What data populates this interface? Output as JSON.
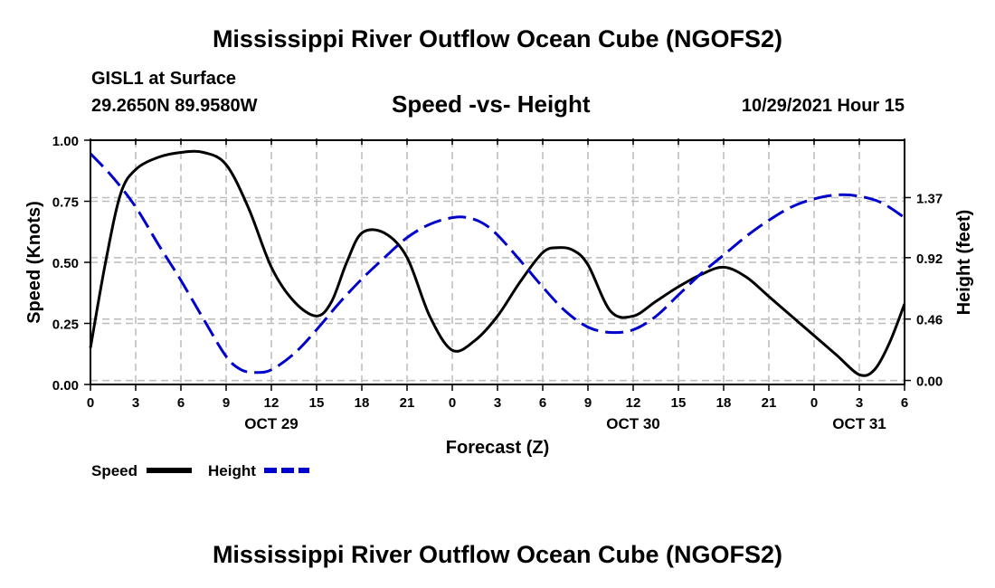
{
  "header": {
    "title": "Mississippi River Outflow Ocean Cube (NGOFS2)",
    "station": "GISL1 at Surface",
    "coordinates": "29.2650N  89.9580W",
    "subtitle": "Speed -vs- Height",
    "datetime": "10/29/2021 Hour 15"
  },
  "footer": {
    "title": "Mississippi River Outflow Ocean Cube (NGOFS2)"
  },
  "colors": {
    "speed": "#000000",
    "height": "#0000cc",
    "grid": "#bbbbbb"
  },
  "chart_data": {
    "type": "line",
    "title": "Speed -vs- Height",
    "xlabel": "Forecast (Z)",
    "ylabel": "Speed (Knots)",
    "y2label": "Height (feet)",
    "xlim": [
      0,
      54
    ],
    "ylim": [
      0,
      1
    ],
    "y2lim": [
      -0.03,
      1.8
    ],
    "x_ticks": [
      0,
      3,
      6,
      9,
      12,
      15,
      18,
      21,
      24,
      27,
      30,
      33,
      36,
      39,
      42,
      45,
      48,
      51,
      54
    ],
    "x_tick_labels": [
      "0",
      "3",
      "6",
      "9",
      "12",
      "15",
      "18",
      "21",
      "0",
      "3",
      "6",
      "9",
      "12",
      "15",
      "18",
      "21",
      "0",
      "3",
      "6"
    ],
    "date_labels": [
      {
        "x": 12,
        "label": "OCT 29"
      },
      {
        "x": 36,
        "label": "OCT 30"
      },
      {
        "x": 51,
        "label": "OCT 31"
      }
    ],
    "y_ticks": [
      0,
      0.25,
      0.5,
      0.75,
      1
    ],
    "y_tick_labels": [
      "0.00",
      "0.25",
      "0.50",
      "0.75",
      "1.00"
    ],
    "y2_ticks": [
      0,
      0.46,
      0.92,
      1.37
    ],
    "y2_tick_labels": [
      "0.00",
      "0.46",
      "0.92",
      "1.37"
    ],
    "grid": true,
    "legend_position": "bottom-left",
    "series": [
      {
        "name": "Speed",
        "axis": "left",
        "style": "solid",
        "x": [
          0,
          1,
          2,
          3,
          4.5,
          6,
          7.5,
          9,
          10.5,
          12,
          13.5,
          15,
          16,
          17,
          18,
          19.5,
          21,
          22.5,
          24,
          25.5,
          27,
          28.5,
          30,
          31,
          32,
          33,
          34.5,
          36,
          37.5,
          39,
          40.5,
          42,
          43.5,
          45,
          46.5,
          48,
          49.5,
          51,
          52,
          53,
          54
        ],
        "values": [
          0.15,
          0.5,
          0.78,
          0.88,
          0.93,
          0.95,
          0.95,
          0.9,
          0.72,
          0.48,
          0.34,
          0.28,
          0.34,
          0.5,
          0.62,
          0.62,
          0.52,
          0.28,
          0.14,
          0.18,
          0.28,
          0.42,
          0.54,
          0.56,
          0.55,
          0.49,
          0.3,
          0.28,
          0.34,
          0.4,
          0.45,
          0.48,
          0.44,
          0.36,
          0.28,
          0.2,
          0.12,
          0.04,
          0.06,
          0.17,
          0.33
        ]
      },
      {
        "name": "Height",
        "axis": "right",
        "style": "dashed",
        "x": [
          0,
          1.5,
          3,
          4.5,
          6,
          7.5,
          9,
          10,
          11,
          12,
          13.5,
          15,
          16.5,
          18,
          19.5,
          21,
          22.5,
          24,
          25,
          26,
          27,
          28.5,
          30,
          31.5,
          33,
          34.5,
          36,
          37.5,
          39,
          40.5,
          42,
          43.5,
          45,
          46.5,
          48,
          49.5,
          51,
          52.5,
          54
        ],
        "values": [
          1.7,
          1.52,
          1.3,
          1.02,
          0.75,
          0.46,
          0.18,
          0.08,
          0.06,
          0.08,
          0.2,
          0.38,
          0.58,
          0.76,
          0.92,
          1.07,
          1.17,
          1.22,
          1.22,
          1.18,
          1.09,
          0.9,
          0.7,
          0.52,
          0.4,
          0.36,
          0.38,
          0.48,
          0.64,
          0.8,
          0.94,
          1.08,
          1.2,
          1.3,
          1.36,
          1.39,
          1.38,
          1.33,
          1.22
        ]
      }
    ]
  }
}
